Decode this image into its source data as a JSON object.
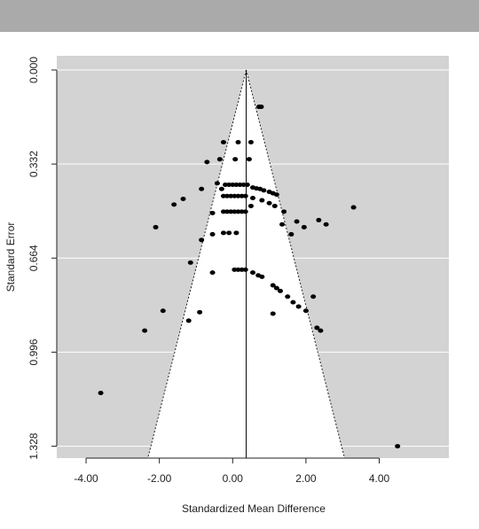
{
  "chart_data": {
    "type": "scatter",
    "title": "",
    "xlabel": "Standardized Mean Difference",
    "ylabel": "Standard Error",
    "xlim": [
      -4.8,
      5.9
    ],
    "ylim": [
      1.37,
      -0.05
    ],
    "y_inverted": true,
    "x_ticks": [
      -4,
      -2,
      0,
      2,
      4
    ],
    "x_tick_labels": [
      "-4.00",
      "-2.00",
      "0.00",
      "2.00",
      "4.00"
    ],
    "y_ticks": [
      0.0,
      0.332,
      0.664,
      0.996,
      1.328
    ],
    "y_tick_labels": [
      "0.000",
      "0.332",
      "0.664",
      "0.996",
      "1.328"
    ],
    "grid": true,
    "summary_effect": 0.37,
    "funnel_base_se": 1.37,
    "colors": {
      "panel": "#d3d3d3",
      "funnel": "#ffffff",
      "point": "#000000",
      "gridline": "#ffffff"
    },
    "points": [
      {
        "x": 0.72,
        "y": 0.13
      },
      {
        "x": 0.78,
        "y": 0.13
      },
      {
        "x": -0.25,
        "y": 0.255
      },
      {
        "x": 0.15,
        "y": 0.255
      },
      {
        "x": 0.5,
        "y": 0.255
      },
      {
        "x": -0.7,
        "y": 0.325
      },
      {
        "x": -0.35,
        "y": 0.315
      },
      {
        "x": 0.07,
        "y": 0.315
      },
      {
        "x": 0.45,
        "y": 0.315
      },
      {
        "x": -0.85,
        "y": 0.42
      },
      {
        "x": -0.42,
        "y": 0.4
      },
      {
        "x": -0.3,
        "y": 0.42
      },
      {
        "x": -0.2,
        "y": 0.405
      },
      {
        "x": -0.1,
        "y": 0.405
      },
      {
        "x": 0.0,
        "y": 0.405
      },
      {
        "x": 0.1,
        "y": 0.405
      },
      {
        "x": 0.2,
        "y": 0.405
      },
      {
        "x": 0.3,
        "y": 0.405
      },
      {
        "x": 0.4,
        "y": 0.405
      },
      {
        "x": 0.55,
        "y": 0.415
      },
      {
        "x": 0.65,
        "y": 0.418
      },
      {
        "x": 0.75,
        "y": 0.42
      },
      {
        "x": 0.85,
        "y": 0.425
      },
      {
        "x": 1.0,
        "y": 0.43
      },
      {
        "x": 1.1,
        "y": 0.435
      },
      {
        "x": 1.2,
        "y": 0.44
      },
      {
        "x": -0.25,
        "y": 0.445
      },
      {
        "x": -0.15,
        "y": 0.445
      },
      {
        "x": -0.05,
        "y": 0.445
      },
      {
        "x": 0.05,
        "y": 0.445
      },
      {
        "x": 0.15,
        "y": 0.445
      },
      {
        "x": 0.25,
        "y": 0.445
      },
      {
        "x": 0.35,
        "y": 0.445
      },
      {
        "x": 0.55,
        "y": 0.452
      },
      {
        "x": 0.8,
        "y": 0.46
      },
      {
        "x": 1.0,
        "y": 0.47
      },
      {
        "x": 1.15,
        "y": 0.48
      },
      {
        "x": 1.4,
        "y": 0.5
      },
      {
        "x": 0.5,
        "y": 0.48
      },
      {
        "x": -1.6,
        "y": 0.475
      },
      {
        "x": -1.35,
        "y": 0.455
      },
      {
        "x": -0.55,
        "y": 0.505
      },
      {
        "x": -0.25,
        "y": 0.5
      },
      {
        "x": -0.15,
        "y": 0.5
      },
      {
        "x": -0.05,
        "y": 0.5
      },
      {
        "x": 0.05,
        "y": 0.5
      },
      {
        "x": 0.15,
        "y": 0.5
      },
      {
        "x": 0.25,
        "y": 0.5
      },
      {
        "x": 0.35,
        "y": 0.5
      },
      {
        "x": -2.1,
        "y": 0.555
      },
      {
        "x": 1.35,
        "y": 0.545
      },
      {
        "x": 1.75,
        "y": 0.535
      },
      {
        "x": 1.95,
        "y": 0.555
      },
      {
        "x": 2.35,
        "y": 0.53
      },
      {
        "x": 2.55,
        "y": 0.545
      },
      {
        "x": 1.6,
        "y": 0.58
      },
      {
        "x": 3.3,
        "y": 0.485
      },
      {
        "x": -0.85,
        "y": 0.6
      },
      {
        "x": -0.55,
        "y": 0.58
      },
      {
        "x": -0.25,
        "y": 0.575
      },
      {
        "x": -0.1,
        "y": 0.575
      },
      {
        "x": 0.1,
        "y": 0.575
      },
      {
        "x": -1.15,
        "y": 0.68
      },
      {
        "x": -0.55,
        "y": 0.715
      },
      {
        "x": 0.05,
        "y": 0.705
      },
      {
        "x": 0.15,
        "y": 0.705
      },
      {
        "x": 0.25,
        "y": 0.705
      },
      {
        "x": 0.35,
        "y": 0.705
      },
      {
        "x": 0.55,
        "y": 0.715
      },
      {
        "x": 0.7,
        "y": 0.725
      },
      {
        "x": 0.8,
        "y": 0.73
      },
      {
        "x": 1.1,
        "y": 0.76
      },
      {
        "x": 1.2,
        "y": 0.77
      },
      {
        "x": 1.3,
        "y": 0.78
      },
      {
        "x": 1.5,
        "y": 0.8
      },
      {
        "x": 1.65,
        "y": 0.82
      },
      {
        "x": 1.8,
        "y": 0.835
      },
      {
        "x": 2.0,
        "y": 0.85
      },
      {
        "x": 2.2,
        "y": 0.8
      },
      {
        "x": 1.1,
        "y": 0.86
      },
      {
        "x": -0.9,
        "y": 0.855
      },
      {
        "x": -1.2,
        "y": 0.885
      },
      {
        "x": -1.9,
        "y": 0.85
      },
      {
        "x": -2.4,
        "y": 0.92
      },
      {
        "x": 2.3,
        "y": 0.91
      },
      {
        "x": 2.4,
        "y": 0.92
      },
      {
        "x": -3.6,
        "y": 1.14
      },
      {
        "x": 4.5,
        "y": 1.328
      }
    ]
  }
}
